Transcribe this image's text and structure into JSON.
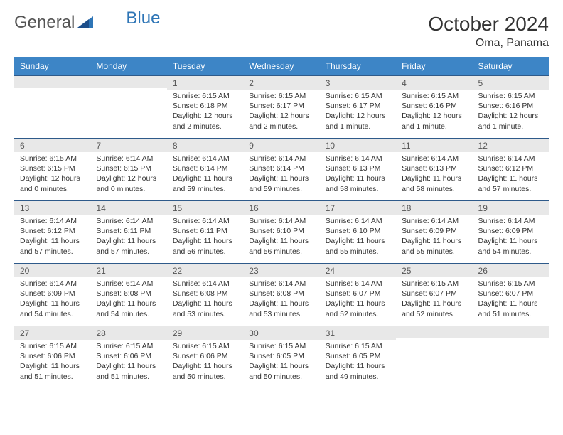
{
  "logo": {
    "part1": "General",
    "part2": "Blue"
  },
  "title": "October 2024",
  "location": "Oma, Panama",
  "colors": {
    "header_bg": "#3d85c6",
    "header_text": "#ffffff",
    "daynum_bg": "#e8e8e8",
    "daynum_border": "#2e5a8a",
    "body_text": "#333333",
    "logo_gray": "#555555",
    "logo_blue": "#2e75b6"
  },
  "weekdays": [
    "Sunday",
    "Monday",
    "Tuesday",
    "Wednesday",
    "Thursday",
    "Friday",
    "Saturday"
  ],
  "grid": [
    [
      {
        "n": "",
        "sr": "",
        "ss": "",
        "dl": ""
      },
      {
        "n": "",
        "sr": "",
        "ss": "",
        "dl": ""
      },
      {
        "n": "1",
        "sr": "Sunrise: 6:15 AM",
        "ss": "Sunset: 6:18 PM",
        "dl": "Daylight: 12 hours and 2 minutes."
      },
      {
        "n": "2",
        "sr": "Sunrise: 6:15 AM",
        "ss": "Sunset: 6:17 PM",
        "dl": "Daylight: 12 hours and 2 minutes."
      },
      {
        "n": "3",
        "sr": "Sunrise: 6:15 AM",
        "ss": "Sunset: 6:17 PM",
        "dl": "Daylight: 12 hours and 1 minute."
      },
      {
        "n": "4",
        "sr": "Sunrise: 6:15 AM",
        "ss": "Sunset: 6:16 PM",
        "dl": "Daylight: 12 hours and 1 minute."
      },
      {
        "n": "5",
        "sr": "Sunrise: 6:15 AM",
        "ss": "Sunset: 6:16 PM",
        "dl": "Daylight: 12 hours and 1 minute."
      }
    ],
    [
      {
        "n": "6",
        "sr": "Sunrise: 6:15 AM",
        "ss": "Sunset: 6:15 PM",
        "dl": "Daylight: 12 hours and 0 minutes."
      },
      {
        "n": "7",
        "sr": "Sunrise: 6:14 AM",
        "ss": "Sunset: 6:15 PM",
        "dl": "Daylight: 12 hours and 0 minutes."
      },
      {
        "n": "8",
        "sr": "Sunrise: 6:14 AM",
        "ss": "Sunset: 6:14 PM",
        "dl": "Daylight: 11 hours and 59 minutes."
      },
      {
        "n": "9",
        "sr": "Sunrise: 6:14 AM",
        "ss": "Sunset: 6:14 PM",
        "dl": "Daylight: 11 hours and 59 minutes."
      },
      {
        "n": "10",
        "sr": "Sunrise: 6:14 AM",
        "ss": "Sunset: 6:13 PM",
        "dl": "Daylight: 11 hours and 58 minutes."
      },
      {
        "n": "11",
        "sr": "Sunrise: 6:14 AM",
        "ss": "Sunset: 6:13 PM",
        "dl": "Daylight: 11 hours and 58 minutes."
      },
      {
        "n": "12",
        "sr": "Sunrise: 6:14 AM",
        "ss": "Sunset: 6:12 PM",
        "dl": "Daylight: 11 hours and 57 minutes."
      }
    ],
    [
      {
        "n": "13",
        "sr": "Sunrise: 6:14 AM",
        "ss": "Sunset: 6:12 PM",
        "dl": "Daylight: 11 hours and 57 minutes."
      },
      {
        "n": "14",
        "sr": "Sunrise: 6:14 AM",
        "ss": "Sunset: 6:11 PM",
        "dl": "Daylight: 11 hours and 57 minutes."
      },
      {
        "n": "15",
        "sr": "Sunrise: 6:14 AM",
        "ss": "Sunset: 6:11 PM",
        "dl": "Daylight: 11 hours and 56 minutes."
      },
      {
        "n": "16",
        "sr": "Sunrise: 6:14 AM",
        "ss": "Sunset: 6:10 PM",
        "dl": "Daylight: 11 hours and 56 minutes."
      },
      {
        "n": "17",
        "sr": "Sunrise: 6:14 AM",
        "ss": "Sunset: 6:10 PM",
        "dl": "Daylight: 11 hours and 55 minutes."
      },
      {
        "n": "18",
        "sr": "Sunrise: 6:14 AM",
        "ss": "Sunset: 6:09 PM",
        "dl": "Daylight: 11 hours and 55 minutes."
      },
      {
        "n": "19",
        "sr": "Sunrise: 6:14 AM",
        "ss": "Sunset: 6:09 PM",
        "dl": "Daylight: 11 hours and 54 minutes."
      }
    ],
    [
      {
        "n": "20",
        "sr": "Sunrise: 6:14 AM",
        "ss": "Sunset: 6:09 PM",
        "dl": "Daylight: 11 hours and 54 minutes."
      },
      {
        "n": "21",
        "sr": "Sunrise: 6:14 AM",
        "ss": "Sunset: 6:08 PM",
        "dl": "Daylight: 11 hours and 54 minutes."
      },
      {
        "n": "22",
        "sr": "Sunrise: 6:14 AM",
        "ss": "Sunset: 6:08 PM",
        "dl": "Daylight: 11 hours and 53 minutes."
      },
      {
        "n": "23",
        "sr": "Sunrise: 6:14 AM",
        "ss": "Sunset: 6:08 PM",
        "dl": "Daylight: 11 hours and 53 minutes."
      },
      {
        "n": "24",
        "sr": "Sunrise: 6:14 AM",
        "ss": "Sunset: 6:07 PM",
        "dl": "Daylight: 11 hours and 52 minutes."
      },
      {
        "n": "25",
        "sr": "Sunrise: 6:15 AM",
        "ss": "Sunset: 6:07 PM",
        "dl": "Daylight: 11 hours and 52 minutes."
      },
      {
        "n": "26",
        "sr": "Sunrise: 6:15 AM",
        "ss": "Sunset: 6:07 PM",
        "dl": "Daylight: 11 hours and 51 minutes."
      }
    ],
    [
      {
        "n": "27",
        "sr": "Sunrise: 6:15 AM",
        "ss": "Sunset: 6:06 PM",
        "dl": "Daylight: 11 hours and 51 minutes."
      },
      {
        "n": "28",
        "sr": "Sunrise: 6:15 AM",
        "ss": "Sunset: 6:06 PM",
        "dl": "Daylight: 11 hours and 51 minutes."
      },
      {
        "n": "29",
        "sr": "Sunrise: 6:15 AM",
        "ss": "Sunset: 6:06 PM",
        "dl": "Daylight: 11 hours and 50 minutes."
      },
      {
        "n": "30",
        "sr": "Sunrise: 6:15 AM",
        "ss": "Sunset: 6:05 PM",
        "dl": "Daylight: 11 hours and 50 minutes."
      },
      {
        "n": "31",
        "sr": "Sunrise: 6:15 AM",
        "ss": "Sunset: 6:05 PM",
        "dl": "Daylight: 11 hours and 49 minutes."
      },
      {
        "n": "",
        "sr": "",
        "ss": "",
        "dl": ""
      },
      {
        "n": "",
        "sr": "",
        "ss": "",
        "dl": ""
      }
    ]
  ]
}
